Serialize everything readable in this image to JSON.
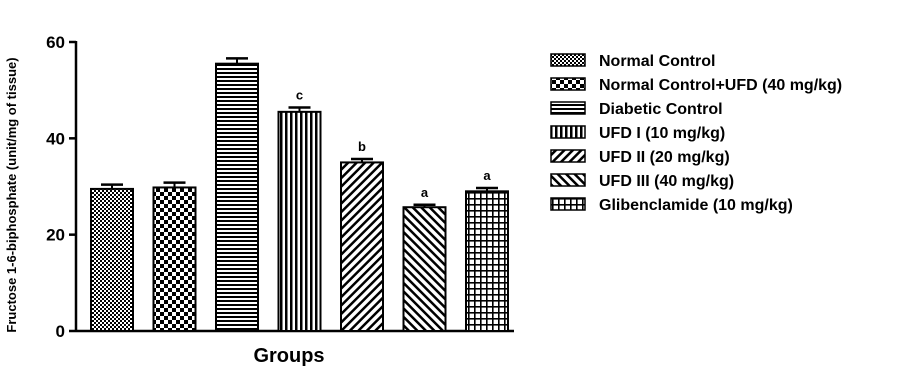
{
  "chart_data": {
    "type": "bar",
    "xlabel": "Groups",
    "ylabel": "Fructose 1-6-biphosphate (unit/mg of tissue)",
    "ylim": [
      0,
      60
    ],
    "yticks": [
      "0",
      "20",
      "40",
      "60"
    ],
    "grid": false,
    "legend_position": "right",
    "categories": [
      "Normal Control",
      "Normal Control+UFD (40 mg/kg)",
      "Diabetic Control",
      "UFD I (10 mg/kg)",
      "UFD II (20 mg/kg)",
      "UFD III (40 mg/kg)",
      "Glibenclamide (10 mg/kg)"
    ],
    "values": [
      29.5,
      29.8,
      55.5,
      45.5,
      35.0,
      25.7,
      29.0
    ],
    "errors": [
      0.9,
      1.0,
      1.1,
      0.9,
      0.7,
      0.5,
      0.7
    ],
    "significance": [
      "",
      "",
      "",
      "c",
      "b",
      "a",
      "a"
    ],
    "patterns": [
      "dots",
      "checker",
      "hlines",
      "vlines",
      "diag-up",
      "diag-down",
      "grid"
    ]
  }
}
